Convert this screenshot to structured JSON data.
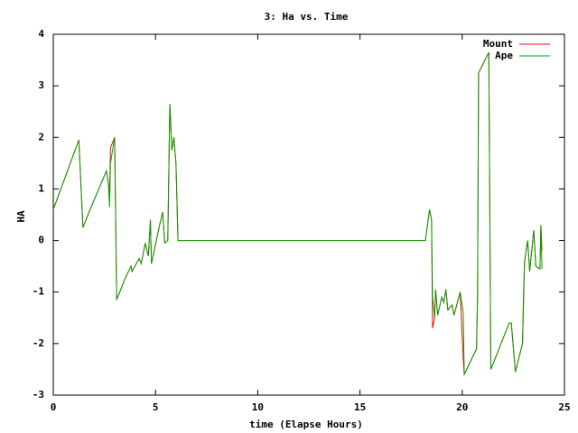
{
  "chart_data": {
    "type": "line",
    "title": "3: Ha vs. Time",
    "x_label": "time (Elapse Hours)",
    "y_label": "HA",
    "x": [
      0,
      1.25,
      1.45,
      1.8,
      2.6,
      2.7,
      2.75,
      2.8,
      3.0,
      3.1,
      3.5,
      3.8,
      3.85,
      4.2,
      4.3,
      4.5,
      4.65,
      4.75,
      4.8,
      5.2,
      5.35,
      5.45,
      5.6,
      5.7,
      5.8,
      5.9,
      6.0,
      6.1,
      18.2,
      18.4,
      18.5,
      18.55,
      18.65,
      18.7,
      18.8,
      19.0,
      19.1,
      19.2,
      19.3,
      19.5,
      19.6,
      19.9,
      20.05,
      20.1,
      20.7,
      20.75,
      20.8,
      21.3,
      21.4,
      22.3,
      22.4,
      22.6,
      22.95,
      23.0,
      23.05,
      23.2,
      23.3,
      23.5,
      23.6,
      23.8,
      23.85,
      23.9
    ],
    "series": [
      {
        "name": "Mount",
        "color": "#ff0000",
        "values": [
          0.6,
          1.95,
          0.25,
          0.6,
          1.35,
          1.1,
          0.8,
          1.8,
          2.0,
          -1.15,
          -0.75,
          -0.5,
          -0.6,
          -0.35,
          -0.45,
          -0.05,
          -0.3,
          0.4,
          -0.45,
          0.3,
          0.55,
          -0.05,
          0.0,
          2.65,
          1.75,
          2.0,
          1.5,
          0.0,
          0.0,
          0.6,
          0.4,
          -1.7,
          -1.5,
          -0.95,
          -1.45,
          -1.1,
          -1.2,
          -0.95,
          -1.35,
          -1.25,
          -1.45,
          -1.0,
          -2.3,
          -2.6,
          -2.1,
          -1.05,
          3.25,
          3.65,
          -2.5,
          -1.6,
          -1.6,
          -2.55,
          -2.0,
          -1.2,
          -0.4,
          0.0,
          -0.6,
          0.2,
          -0.5,
          -0.55,
          0.3,
          -0.2
        ]
      },
      {
        "name": "Ape",
        "color": "#00a000",
        "values": [
          0.6,
          1.95,
          0.25,
          0.6,
          1.35,
          1.1,
          0.65,
          1.5,
          2.0,
          -1.15,
          -0.75,
          -0.5,
          -0.6,
          -0.35,
          -0.45,
          -0.05,
          -0.3,
          0.4,
          -0.45,
          0.3,
          0.55,
          -0.05,
          0.0,
          2.65,
          1.75,
          2.0,
          1.5,
          0.0,
          0.0,
          0.6,
          0.4,
          -1.1,
          -1.5,
          -0.95,
          -1.45,
          -1.1,
          -1.2,
          -0.95,
          -1.35,
          -1.25,
          -1.45,
          -1.0,
          -1.4,
          -2.6,
          -2.1,
          -1.05,
          3.25,
          3.65,
          -2.5,
          -1.6,
          -1.6,
          -2.55,
          -2.0,
          -1.0,
          -0.4,
          0.0,
          -0.6,
          0.2,
          -0.5,
          -0.55,
          0.3,
          -0.55
        ]
      }
    ],
    "xlim": [
      0,
      25
    ],
    "xticks": [
      0,
      5,
      10,
      15,
      20,
      25
    ],
    "ylim": [
      -3,
      4
    ],
    "yticks": [
      -3,
      -2,
      -1,
      0,
      1,
      2,
      3,
      4
    ],
    "legend": "top-right"
  }
}
